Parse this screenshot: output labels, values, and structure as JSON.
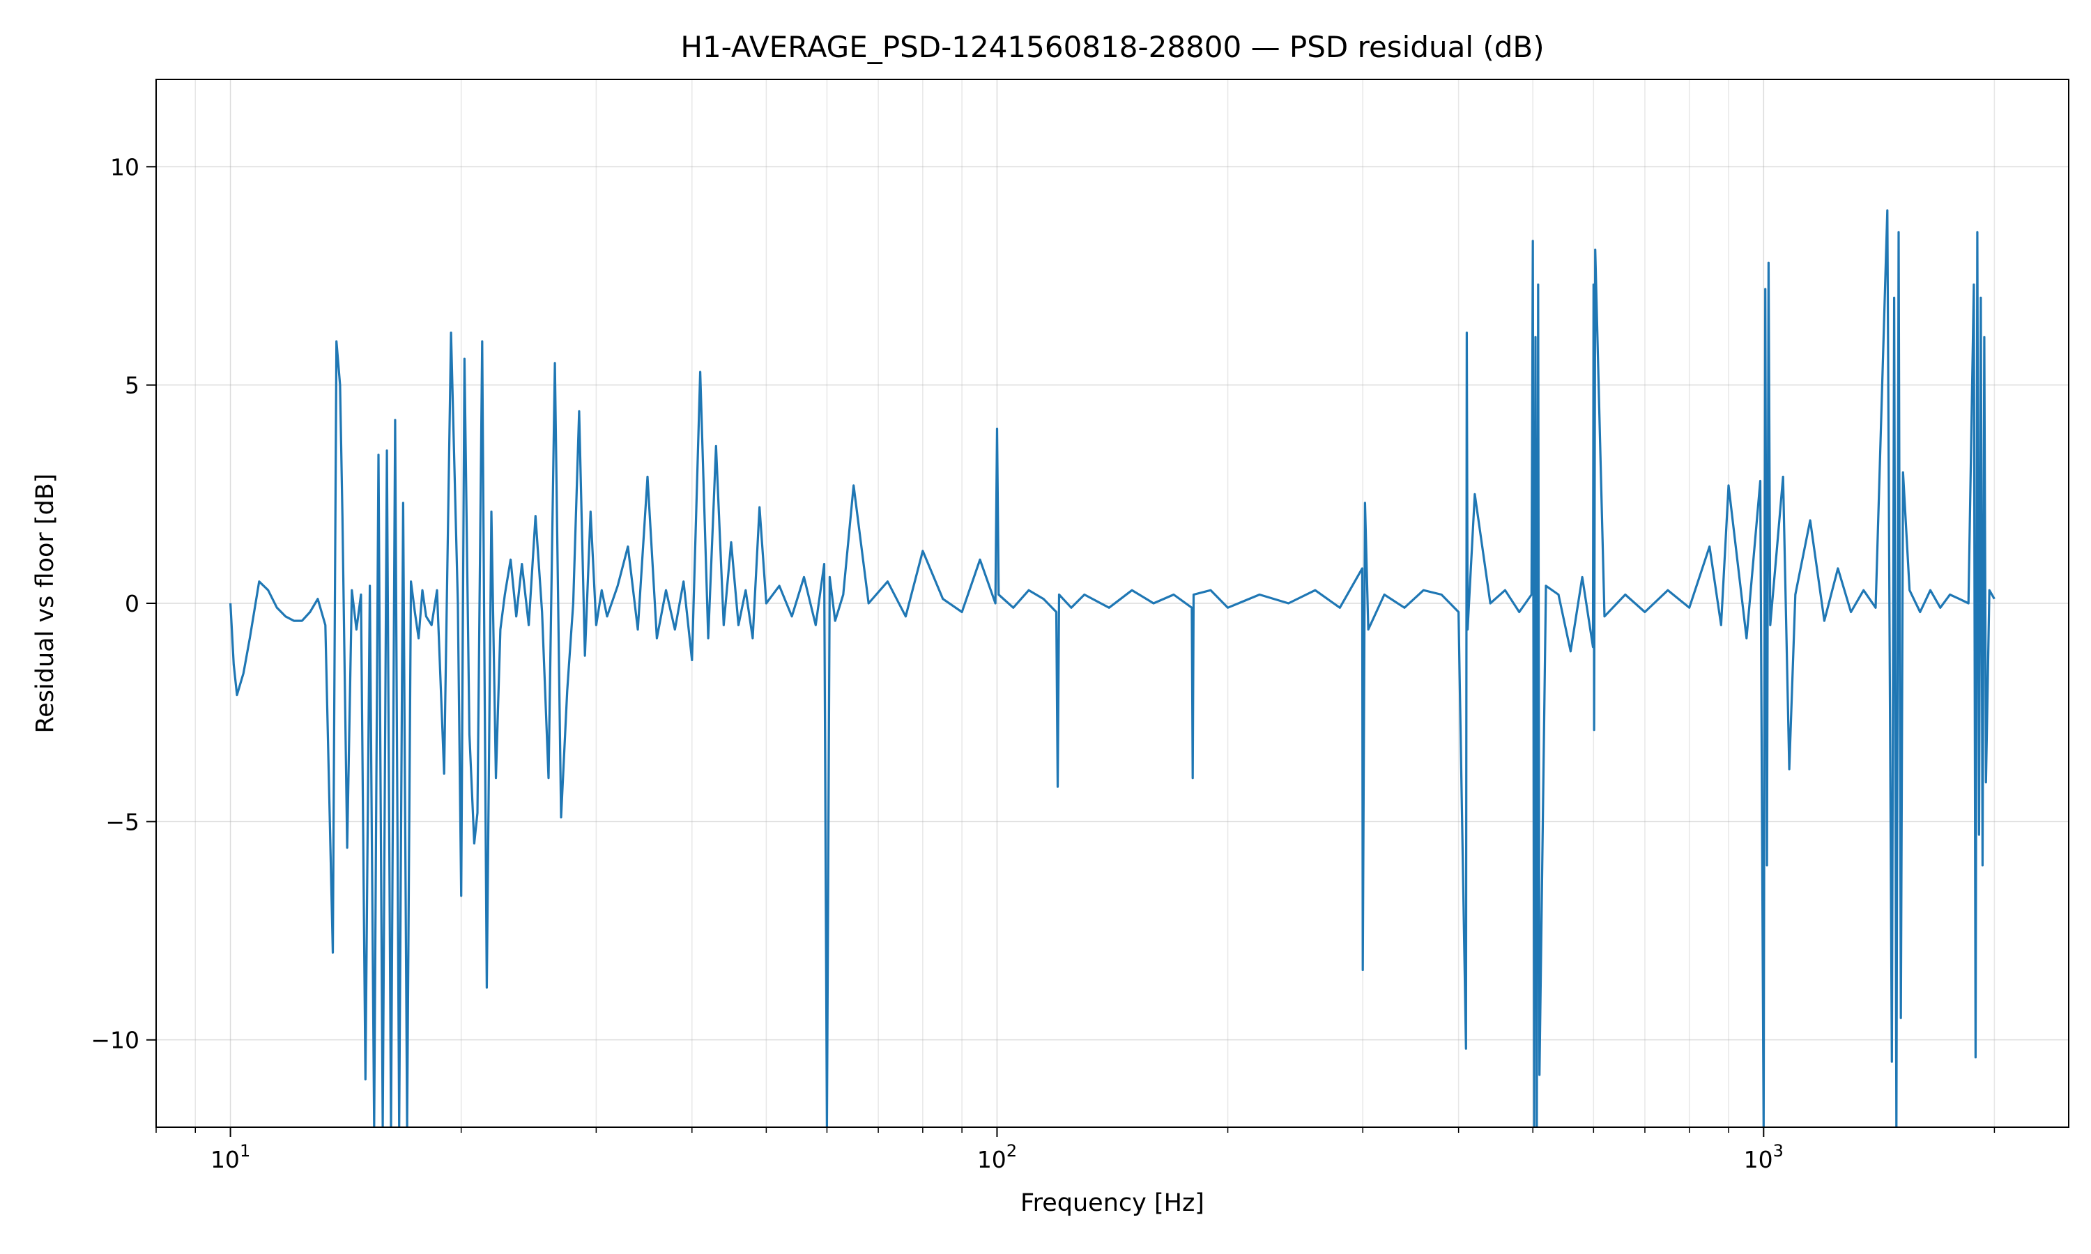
{
  "chart_data": {
    "type": "line",
    "title": "H1-AVERAGE_PSD-1241560818-28800 — PSD residual (dB)",
    "xlabel": "Frequency [Hz]",
    "ylabel": "Residual vs floor [dB]",
    "x_scale": "log",
    "xlim": [
      8.0,
      2500
    ],
    "ylim": [
      -12,
      12
    ],
    "grid": true,
    "legend": "none",
    "x_ticks": [
      {
        "value": 10,
        "mantissa": "10",
        "exp": "1"
      },
      {
        "value": 100,
        "mantissa": "10",
        "exp": "2"
      },
      {
        "value": 1000,
        "mantissa": "10",
        "exp": "3"
      }
    ],
    "y_ticks": [
      {
        "value": 10,
        "label": "10"
      },
      {
        "value": 5,
        "label": "5"
      },
      {
        "value": 0,
        "label": "0"
      },
      {
        "value": -5,
        "label": "−5"
      },
      {
        "value": -10,
        "label": "−10"
      }
    ],
    "series": [
      {
        "color": "#1f77b4",
        "x": [
          10,
          10.1,
          10.2,
          10.4,
          10.6,
          10.9,
          11.2,
          11.5,
          11.8,
          12.1,
          12.4,
          12.7,
          13.0,
          13.3,
          13.6,
          13.75,
          13.9,
          14.0,
          14.2,
          14.4,
          14.6,
          14.8,
          15.0,
          15.2,
          15.4,
          15.6,
          15.8,
          16.0,
          16.2,
          16.4,
          16.6,
          16.8,
          17.0,
          17.2,
          17.4,
          17.6,
          17.8,
          18.0,
          18.3,
          18.6,
          19.0,
          19.4,
          19.8,
          20.0,
          20.2,
          20.5,
          20.8,
          21.0,
          21.3,
          21.6,
          21.9,
          22.2,
          22.5,
          22.8,
          23.2,
          23.6,
          24.0,
          24.5,
          25.0,
          25.5,
          26.0,
          26.5,
          27.0,
          27.5,
          28.0,
          28.5,
          29.0,
          29.5,
          30.0,
          30.5,
          31.0,
          32.0,
          33.0,
          34.0,
          35.0,
          36.0,
          37.0,
          38.0,
          39.0,
          40.0,
          41.0,
          42.0,
          43.0,
          44.0,
          45.0,
          46.0,
          47.0,
          48.0,
          49.0,
          50.0,
          52.0,
          54.0,
          56.0,
          58.0,
          59.5,
          60.0,
          60.5,
          61.5,
          63.0,
          65.0,
          68.0,
          72.0,
          76.0,
          80.0,
          85.0,
          90.0,
          95.0,
          99.5,
          100.0,
          100.5,
          105,
          110,
          115,
          119.5,
          120.0,
          120.5,
          125,
          130,
          140,
          150,
          160,
          170,
          179.5,
          180.0,
          180.5,
          190,
          200,
          220,
          240,
          260,
          280,
          299.5,
          300.0,
          302,
          305,
          320,
          340,
          360,
          380,
          400,
          409,
          410,
          411,
          420,
          440,
          460,
          480,
          498,
          500,
          502,
          504,
          506,
          508,
          510,
          520,
          540,
          560,
          580,
          599,
          600,
          601,
          603,
          620,
          660,
          700,
          750,
          800,
          850,
          880,
          900,
          950,
          990,
          1000,
          1005,
          1010,
          1015,
          1020,
          1040,
          1060,
          1080,
          1100,
          1150,
          1200,
          1250,
          1300,
          1350,
          1400,
          1450,
          1470,
          1480,
          1490,
          1500,
          1510,
          1520,
          1550,
          1600,
          1650,
          1700,
          1750,
          1800,
          1850,
          1880,
          1890,
          1900,
          1910,
          1920,
          1930,
          1940,
          1950,
          1970,
          2000
        ],
        "y": [
          0.0,
          -1.4,
          -2.1,
          -1.6,
          -0.8,
          0.5,
          0.3,
          -0.1,
          -0.3,
          -0.4,
          -0.4,
          -0.2,
          0.1,
          -0.5,
          -8.0,
          6.0,
          5.0,
          2.0,
          -5.6,
          0.3,
          -0.6,
          0.2,
          -10.9,
          0.4,
          -12.0,
          3.4,
          -12.0,
          3.5,
          -12.0,
          4.2,
          -12.0,
          2.3,
          -12.0,
          0.5,
          -0.2,
          -0.8,
          0.3,
          -0.3,
          -0.5,
          0.3,
          -3.9,
          6.2,
          0.0,
          -6.7,
          5.6,
          -3.0,
          -5.5,
          -4.8,
          6.0,
          -8.8,
          2.1,
          -4.0,
          -0.6,
          0.2,
          1.0,
          -0.3,
          0.9,
          -0.5,
          2.0,
          -0.2,
          -4.0,
          5.5,
          -4.9,
          -2.0,
          0.0,
          4.4,
          -1.2,
          2.1,
          -0.5,
          0.3,
          -0.3,
          0.4,
          1.3,
          -0.6,
          2.9,
          -0.8,
          0.3,
          -0.6,
          0.5,
          -1.3,
          5.3,
          -0.8,
          3.6,
          -0.5,
          1.4,
          -0.5,
          0.3,
          -0.8,
          2.2,
          0.0,
          0.4,
          -0.3,
          0.6,
          -0.5,
          0.9,
          -12.0,
          0.6,
          -0.4,
          0.2,
          2.7,
          0.0,
          0.5,
          -0.3,
          1.2,
          0.1,
          -0.2,
          1.0,
          0.0,
          4.0,
          0.2,
          -0.1,
          0.3,
          0.1,
          -0.2,
          -4.2,
          0.2,
          -0.1,
          0.2,
          -0.1,
          0.3,
          0.0,
          0.2,
          -0.1,
          -4.0,
          0.2,
          0.3,
          -0.1,
          0.2,
          0.0,
          0.3,
          -0.1,
          0.8,
          -8.4,
          2.3,
          -0.6,
          0.2,
          -0.1,
          0.3,
          0.2,
          -0.2,
          -10.2,
          6.2,
          -0.6,
          2.5,
          0.0,
          0.3,
          -0.2,
          0.2,
          8.3,
          -12.0,
          6.1,
          -12.0,
          7.3,
          -10.8,
          0.4,
          0.2,
          -1.1,
          0.6,
          -1.0,
          7.3,
          -2.9,
          8.1,
          -0.3,
          0.2,
          -0.2,
          0.3,
          -0.1,
          1.3,
          -0.5,
          2.7,
          -0.8,
          2.8,
          -12.0,
          7.2,
          -6.0,
          7.8,
          -0.5,
          1.2,
          2.9,
          -3.8,
          0.2,
          1.9,
          -0.4,
          0.8,
          -0.2,
          0.3,
          -0.1,
          9.0,
          -10.5,
          7.0,
          -12.0,
          8.5,
          -9.5,
          3.0,
          0.3,
          -0.2,
          0.3,
          -0.1,
          0.2,
          0.1,
          0.0,
          7.3,
          -10.4,
          8.5,
          -5.3,
          7.0,
          -6.0,
          6.1,
          -4.1,
          0.3,
          0.1
        ]
      }
    ]
  }
}
